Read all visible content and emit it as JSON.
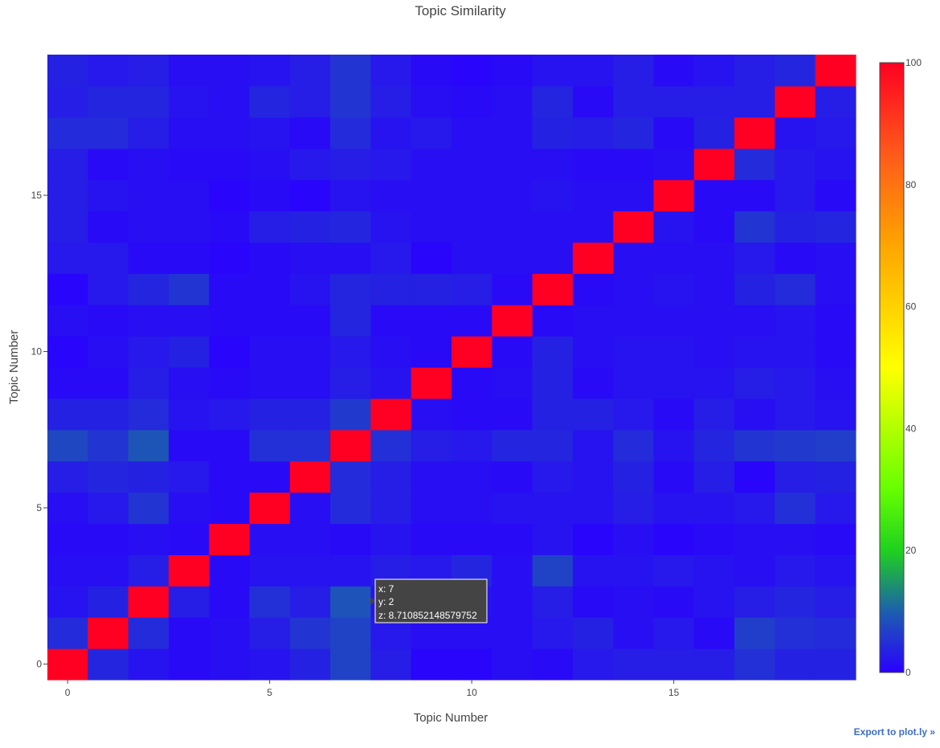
{
  "chart_data": {
    "type": "heatmap",
    "title": "Topic Similarity",
    "xlabel": "Topic Number",
    "ylabel": "Topic Number",
    "x": [
      0,
      1,
      2,
      3,
      4,
      5,
      6,
      7,
      8,
      9,
      10,
      11,
      12,
      13,
      14,
      15,
      16,
      17,
      18,
      19
    ],
    "y": [
      0,
      1,
      2,
      3,
      4,
      5,
      6,
      7,
      8,
      9,
      10,
      11,
      12,
      13,
      14,
      15,
      16,
      17,
      18,
      19
    ],
    "xlim": [
      -0.5,
      19.5
    ],
    "ylim": [
      -0.5,
      19.5
    ],
    "x_ticks": [
      0,
      5,
      10,
      15
    ],
    "y_ticks": [
      0,
      5,
      10,
      15
    ],
    "zlim": [
      0,
      100
    ],
    "colorbar_ticks": [
      0,
      20,
      40,
      60,
      80,
      100
    ],
    "colorscale": [
      [
        0.0,
        "#2a00ff"
      ],
      [
        0.1,
        "#1c5fae"
      ],
      [
        0.2,
        "#1fd11f"
      ],
      [
        0.3,
        "#66ff00"
      ],
      [
        0.5,
        "#ffff00"
      ],
      [
        0.7,
        "#ffa500"
      ],
      [
        0.85,
        "#ff5a1a"
      ],
      [
        1.0,
        "#ff0022"
      ]
    ],
    "z": [
      [
        100.0,
        4.0,
        2.0,
        1.0,
        1.5,
        2.0,
        3.5,
        7.0,
        3.0,
        0.5,
        0.5,
        1.5,
        1.0,
        2.5,
        3.0,
        3.0,
        3.0,
        5.0,
        3.5,
        3.5
      ],
      [
        4.5,
        100.0,
        4.5,
        1.0,
        1.5,
        3.0,
        5.5,
        7.0,
        2.5,
        1.5,
        1.5,
        1.5,
        2.5,
        3.5,
        1.5,
        2.5,
        1.0,
        6.5,
        5.0,
        4.5
      ],
      [
        2.0,
        3.5,
        100.0,
        3.0,
        1.0,
        5.0,
        3.0,
        8.7,
        2.0,
        1.5,
        2.0,
        1.5,
        3.0,
        1.0,
        1.5,
        1.0,
        2.0,
        3.0,
        4.0,
        3.0
      ],
      [
        1.5,
        1.5,
        3.0,
        100.0,
        1.0,
        2.0,
        2.0,
        2.0,
        3.0,
        2.5,
        4.0,
        1.5,
        7.0,
        2.0,
        2.0,
        2.5,
        2.0,
        1.5,
        2.5,
        2.0
      ],
      [
        1.0,
        1.0,
        1.5,
        1.0,
        100.0,
        1.5,
        1.5,
        1.0,
        2.0,
        1.0,
        1.0,
        1.0,
        2.0,
        0.5,
        1.5,
        0.5,
        1.0,
        1.5,
        1.5,
        1.0
      ],
      [
        1.5,
        2.5,
        5.5,
        1.5,
        1.0,
        100.0,
        1.5,
        4.5,
        3.0,
        1.5,
        1.5,
        2.0,
        2.0,
        2.0,
        3.0,
        2.0,
        2.0,
        2.5,
        5.0,
        2.5
      ],
      [
        3.0,
        4.0,
        3.5,
        2.5,
        1.0,
        1.0,
        100.0,
        4.5,
        3.0,
        1.5,
        1.5,
        1.0,
        2.5,
        2.0,
        3.5,
        1.0,
        3.0,
        0.5,
        3.0,
        3.5
      ],
      [
        7.5,
        5.5,
        9.0,
        1.0,
        1.0,
        5.0,
        5.0,
        100.0,
        5.0,
        3.0,
        2.5,
        4.0,
        4.0,
        2.0,
        4.5,
        2.0,
        4.0,
        5.5,
        6.0,
        6.5
      ],
      [
        3.5,
        3.5,
        4.5,
        2.0,
        2.5,
        3.5,
        3.5,
        6.0,
        100.0,
        1.5,
        1.0,
        1.0,
        3.5,
        3.5,
        2.5,
        1.0,
        3.0,
        1.5,
        2.5,
        2.0
      ],
      [
        1.0,
        1.0,
        3.0,
        1.5,
        1.0,
        1.5,
        1.5,
        3.0,
        2.0,
        100.0,
        1.0,
        1.5,
        3.5,
        1.0,
        2.0,
        2.0,
        2.0,
        3.0,
        2.5,
        1.5
      ],
      [
        0.5,
        1.5,
        2.5,
        3.5,
        0.5,
        1.5,
        1.5,
        2.5,
        1.5,
        1.0,
        100.0,
        1.0,
        3.5,
        1.5,
        2.0,
        2.0,
        1.5,
        2.0,
        2.0,
        1.0
      ],
      [
        1.5,
        1.0,
        1.5,
        1.5,
        1.0,
        1.0,
        1.0,
        4.0,
        1.0,
        1.0,
        1.0,
        100.0,
        1.0,
        1.5,
        1.5,
        1.5,
        1.5,
        1.5,
        2.0,
        1.0
      ],
      [
        0.5,
        2.5,
        4.0,
        5.5,
        1.0,
        1.0,
        2.0,
        4.0,
        3.5,
        3.5,
        3.0,
        1.0,
        100.0,
        1.0,
        1.5,
        2.0,
        1.5,
        3.5,
        4.5,
        1.5
      ],
      [
        2.5,
        2.5,
        1.0,
        1.0,
        0.5,
        1.0,
        1.5,
        1.5,
        2.5,
        0.5,
        1.5,
        1.5,
        1.5,
        100.0,
        1.5,
        1.5,
        1.5,
        2.5,
        1.0,
        1.5
      ],
      [
        3.0,
        1.0,
        1.5,
        1.5,
        1.0,
        3.0,
        3.5,
        4.0,
        2.0,
        1.5,
        1.5,
        1.5,
        1.5,
        1.5,
        100.0,
        2.0,
        1.0,
        5.5,
        3.5,
        4.0
      ],
      [
        3.0,
        2.0,
        1.5,
        1.5,
        0.5,
        1.0,
        0.5,
        2.0,
        1.5,
        1.5,
        1.5,
        1.5,
        2.0,
        1.5,
        1.5,
        100.0,
        1.0,
        1.0,
        2.5,
        1.0
      ],
      [
        3.0,
        1.0,
        1.5,
        1.0,
        1.0,
        1.5,
        2.5,
        3.0,
        2.5,
        1.5,
        1.5,
        1.5,
        1.5,
        1.0,
        1.0,
        1.5,
        100.0,
        4.5,
        2.5,
        2.0
      ],
      [
        4.5,
        4.5,
        3.0,
        1.5,
        1.5,
        2.0,
        1.0,
        4.5,
        2.0,
        2.5,
        1.5,
        1.5,
        3.5,
        3.0,
        4.0,
        1.0,
        3.5,
        100.0,
        2.0,
        2.5
      ],
      [
        3.0,
        4.0,
        4.0,
        2.0,
        1.5,
        4.0,
        3.0,
        5.5,
        3.0,
        1.5,
        1.0,
        1.5,
        4.0,
        1.0,
        3.0,
        3.0,
        3.0,
        3.0,
        100.0,
        3.0
      ],
      [
        3.5,
        2.5,
        3.0,
        1.5,
        1.5,
        2.0,
        3.0,
        5.5,
        2.5,
        1.0,
        0.5,
        1.0,
        2.0,
        2.0,
        3.0,
        1.0,
        2.0,
        3.0,
        4.0,
        100.0
      ]
    ]
  },
  "tooltip": {
    "x_line": "x: 7",
    "y_line": "y: 2",
    "z_line": "z: 8.710852148579752"
  },
  "export_link": "Export to plot.ly »"
}
